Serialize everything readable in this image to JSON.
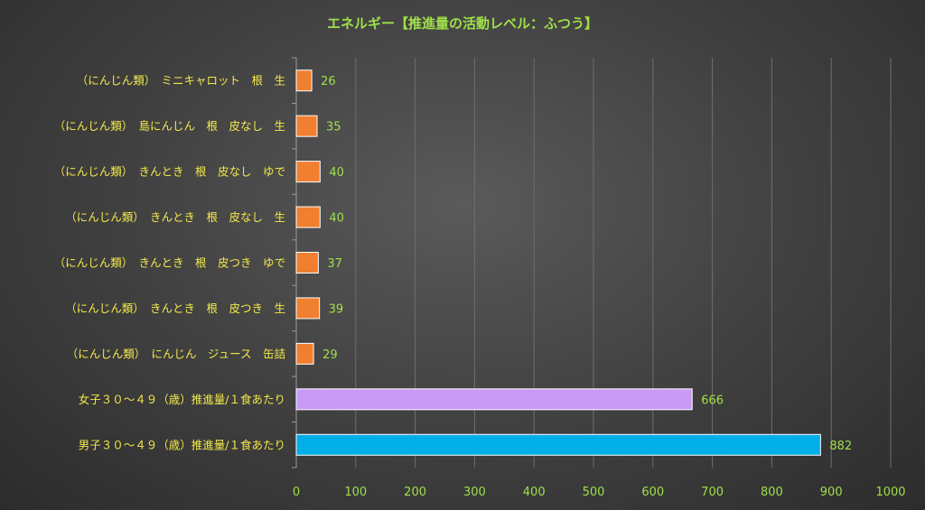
{
  "chart_data": {
    "type": "bar",
    "orientation": "horizontal",
    "title": "エネルギー【推進量の活動レベル：ふつう】",
    "categories": [
      "（にんじん類）　ミニキャロット　根　生",
      "（にんじん類）　島にんじん　根　皮なし　生",
      "（にんじん類）　きんとき　根　皮なし　ゆで",
      "（にんじん類）　きんとき　根　皮なし　生",
      "（にんじん類）　きんとき　根　皮つき　ゆで",
      "（にんじん類）　きんとき　根　皮つき　生",
      "（にんじん類）　にんじん　ジュース　缶詰",
      "女子３０～４９（歳）推進量/１食あたり",
      "男子３０～４９（歳）推進量/１食あたり"
    ],
    "values": [
      26,
      35,
      40,
      40,
      37,
      39,
      29,
      666,
      882
    ],
    "value_labels": [
      "26",
      "35",
      "40",
      "40",
      "37",
      "39",
      "29",
      "666",
      "882"
    ],
    "bar_colors": [
      "#f07f2f",
      "#f07f2f",
      "#f07f2f",
      "#f07f2f",
      "#f07f2f",
      "#f07f2f",
      "#f07f2f",
      "#c89af5",
      "#00aee8"
    ],
    "xlim": [
      0,
      1000
    ],
    "xticks": [
      0,
      100,
      200,
      300,
      400,
      500,
      600,
      700,
      800,
      900,
      1000
    ],
    "xtick_labels": [
      "0",
      "100",
      "200",
      "300",
      "400",
      "500",
      "600",
      "700",
      "800",
      "900",
      "1000"
    ],
    "grid": true,
    "colors": {
      "title": "#9fe04a",
      "category_text": "#f2e84a",
      "value_text": "#9fe04a",
      "tick_text": "#9fe04a",
      "grid": "#6e6e6e",
      "axis": "#9a9a9a"
    }
  }
}
